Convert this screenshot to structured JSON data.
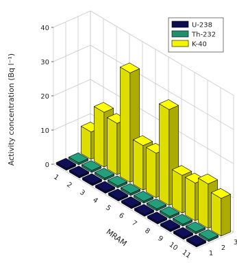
{
  "chart_data": {
    "type": "bar",
    "style": "3d-grouped",
    "title": "",
    "xlabel": "MRAM",
    "ylabel": "Activity concentration (Bq l⁻¹)",
    "depth_ticks": [
      "1",
      "2",
      "3"
    ],
    "categories": [
      "1",
      "2",
      "3",
      "4",
      "5",
      "6",
      "7",
      "8",
      "9",
      "10",
      "11"
    ],
    "ylim": [
      0,
      40
    ],
    "yticks": [
      0,
      10,
      20,
      30,
      40
    ],
    "grid": true,
    "legend_position": "top-right",
    "series": [
      {
        "name": "U-238",
        "color": "#0d0d4f",
        "values": [
          0.6,
          0.6,
          0.6,
          0.6,
          0.6,
          0.6,
          0.6,
          0.6,
          0.6,
          0.6,
          0.6
        ]
      },
      {
        "name": "Th-232",
        "color": "#1f8f6e",
        "values": [
          0.6,
          0.6,
          0.6,
          0.6,
          0.6,
          0.6,
          0.6,
          0.6,
          0.6,
          0.6,
          0.6
        ]
      },
      {
        "name": "K-40",
        "color": "#f5f500",
        "values": [
          8,
          16,
          15,
          32,
          13,
          13,
          28,
          11,
          11,
          13,
          11
        ]
      }
    ]
  }
}
